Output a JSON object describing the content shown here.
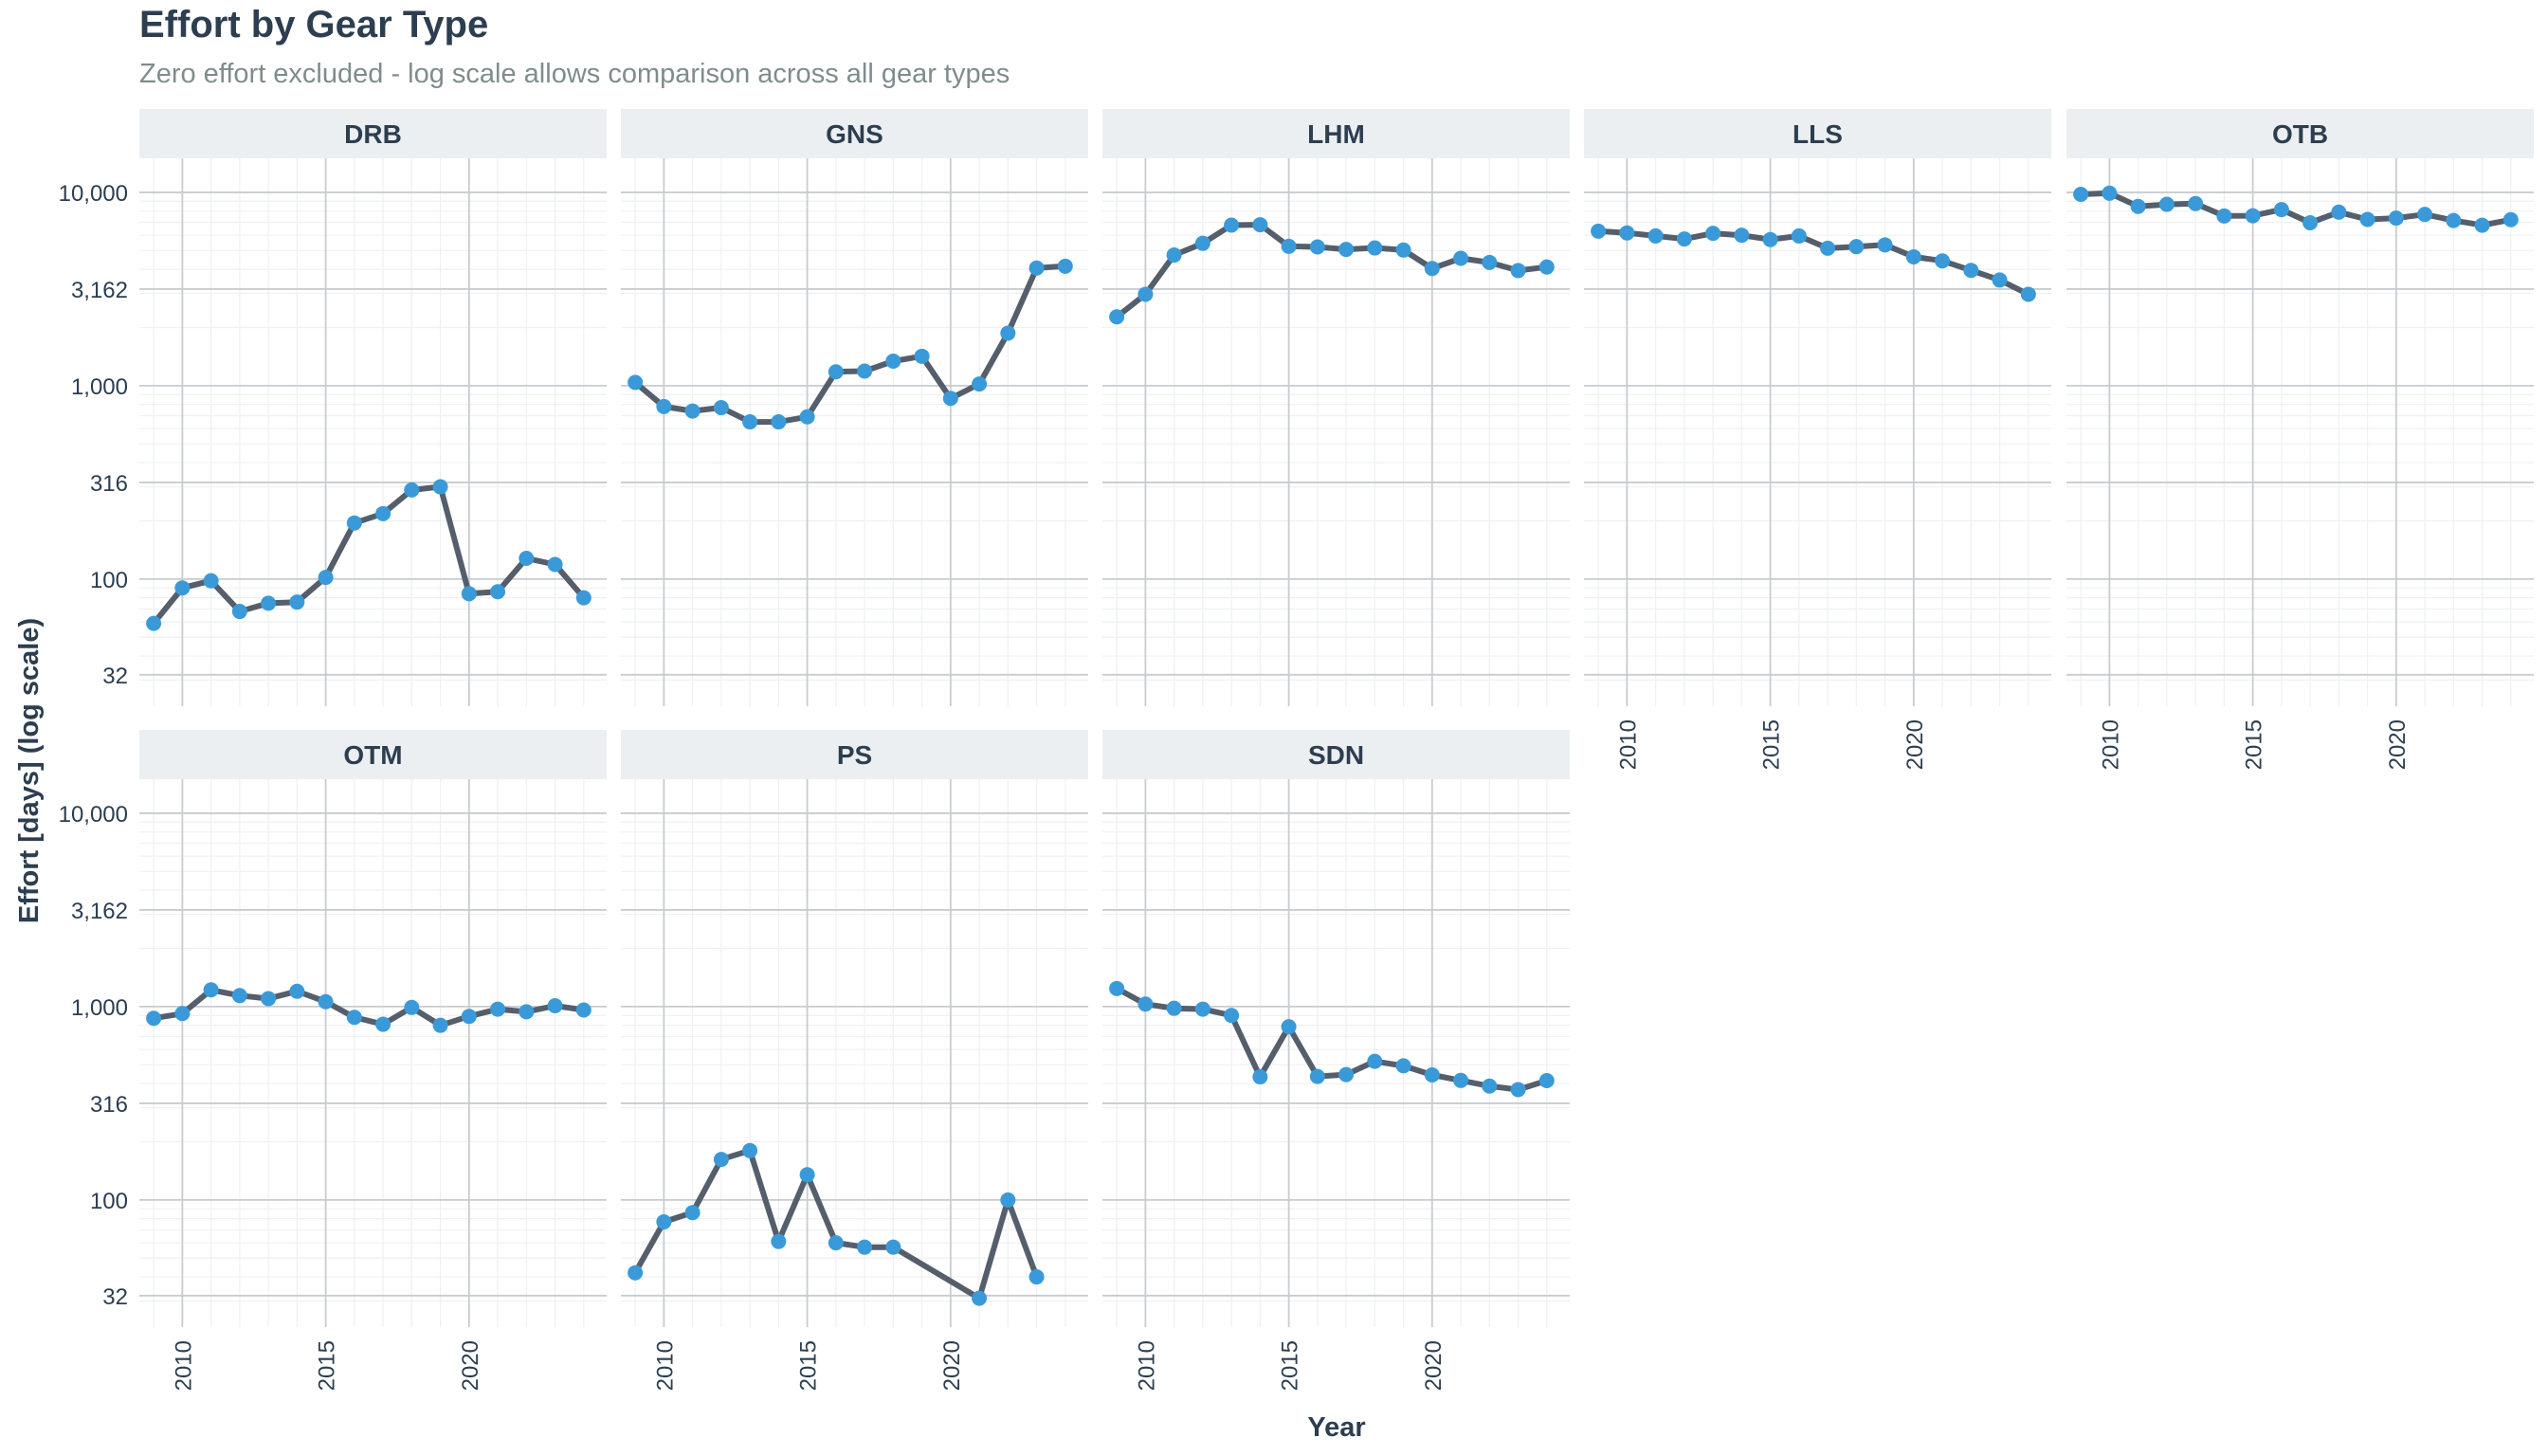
{
  "chart_data": {
    "type": "line",
    "title": "Effort by Gear Type",
    "subtitle": "Zero effort excluded - log scale allows comparison across all gear types",
    "xlabel": "Year",
    "ylabel": "Effort [days] (log scale)",
    "y_scale": "log10",
    "ylim": [
      22,
      15000
    ],
    "xlim": [
      2008.5,
      2024.8
    ],
    "y_ticks": [
      32,
      100,
      316,
      1000,
      3162,
      10000
    ],
    "y_tick_labels": [
      "32",
      "100",
      "316",
      "1,000",
      "3,162",
      "10,000"
    ],
    "x_ticks": [
      2010,
      2015,
      2020
    ],
    "x_tick_labels": [
      "2010",
      "2015",
      "2020"
    ],
    "grid": true,
    "facets": [
      "DRB",
      "GNS",
      "LHM",
      "LLS",
      "OTB",
      "OTM",
      "PS",
      "SDN"
    ],
    "colors": {
      "line": "#555e6b",
      "point": "#3a9ad9",
      "strip_bg": "#eceff1",
      "text": "#2c3e50",
      "subtitle": "#7f8c8d",
      "grid_major": "#c8ccd0",
      "grid_minor": "#eef0f2"
    },
    "series": [
      {
        "name": "DRB",
        "x": [
          2009,
          2010,
          2011,
          2012,
          2013,
          2014,
          2015,
          2016,
          2017,
          2018,
          2019,
          2020,
          2021,
          2022,
          2023,
          2024
        ],
        "values": [
          59,
          90,
          98,
          68,
          75,
          76,
          102,
          195,
          218,
          289,
          300,
          84,
          86,
          128,
          119,
          80
        ]
      },
      {
        "name": "GNS",
        "x": [
          2009,
          2010,
          2011,
          2012,
          2013,
          2014,
          2015,
          2016,
          2017,
          2018,
          2019,
          2020,
          2021,
          2022,
          2023,
          2024
        ],
        "values": [
          1040,
          780,
          740,
          770,
          650,
          650,
          690,
          1180,
          1190,
          1340,
          1420,
          860,
          1020,
          1870,
          4060,
          4150
        ]
      },
      {
        "name": "LHM",
        "x": [
          2009,
          2010,
          2011,
          2012,
          2013,
          2014,
          2015,
          2016,
          2017,
          2018,
          2019,
          2020,
          2021,
          2022,
          2023,
          2024
        ],
        "values": [
          2270,
          2970,
          4740,
          5450,
          6770,
          6800,
          5260,
          5220,
          5070,
          5160,
          5030,
          4040,
          4560,
          4340,
          3940,
          4110
        ]
      },
      {
        "name": "LLS",
        "x": [
          2009,
          2010,
          2011,
          2012,
          2013,
          2014,
          2015,
          2016,
          2017,
          2018,
          2019,
          2020,
          2021,
          2022,
          2023,
          2024
        ],
        "values": [
          6300,
          6170,
          5950,
          5740,
          6140,
          6000,
          5700,
          5950,
          5140,
          5240,
          5350,
          4640,
          4420,
          3950,
          3520,
          2970
        ]
      },
      {
        "name": "OTB",
        "x": [
          2009,
          2010,
          2011,
          2012,
          2013,
          2014,
          2015,
          2016,
          2017,
          2018,
          2019,
          2020,
          2021,
          2022,
          2023,
          2024
        ],
        "values": [
          9770,
          9900,
          8460,
          8670,
          8750,
          7550,
          7570,
          8140,
          6960,
          7900,
          7240,
          7360,
          7690,
          7150,
          6760,
          7220
        ]
      },
      {
        "name": "OTM",
        "x": [
          2009,
          2010,
          2011,
          2012,
          2013,
          2014,
          2015,
          2016,
          2017,
          2018,
          2019,
          2020,
          2021,
          2022,
          2023,
          2024
        ],
        "values": [
          870,
          920,
          1220,
          1140,
          1100,
          1200,
          1060,
          880,
          810,
          990,
          800,
          890,
          970,
          940,
          1010,
          960
        ]
      },
      {
        "name": "PS",
        "x": [
          2009,
          2010,
          2011,
          2012,
          2013,
          2014,
          2015,
          2016,
          2017,
          2018,
          2021,
          2022,
          2023
        ],
        "values": [
          42,
          77,
          86,
          162,
          180,
          61,
          135,
          60,
          57,
          57,
          31,
          100,
          40
        ]
      },
      {
        "name": "SDN",
        "x": [
          2009,
          2010,
          2011,
          2012,
          2013,
          2014,
          2015,
          2016,
          2017,
          2018,
          2019,
          2020,
          2021,
          2022,
          2023,
          2024
        ],
        "values": [
          1240,
          1030,
          980,
          970,
          900,
          433,
          787,
          435,
          445,
          521,
          494,
          443,
          415,
          388,
          372,
          414
        ]
      }
    ]
  }
}
